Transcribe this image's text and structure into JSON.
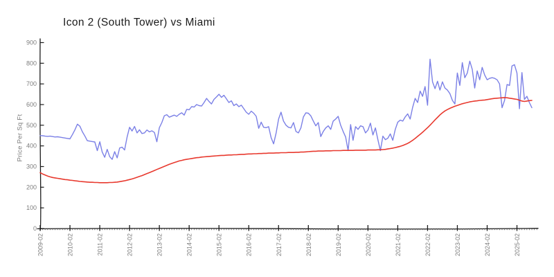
{
  "title": "Icon 2 (South Tower) vs Miami",
  "y_axis_label": "Price Per Sq Ft",
  "colors": {
    "icon2_line": "#7b80e6",
    "miami_line": "#e8392e",
    "axis": "#1a1a1a",
    "tick_label": "#7e7e7e",
    "title_text": "#1b1b1b"
  },
  "chart_data": {
    "type": "line",
    "title": "Icon 2 (South Tower) vs Miami",
    "xlabel": "",
    "ylabel": "Price Per Sq Ft",
    "ylim": [
      0,
      900
    ],
    "y_ticks": [
      0,
      100,
      200,
      300,
      400,
      500,
      600,
      700,
      800,
      900
    ],
    "x_start": "2009-02",
    "x_end": "2025-08",
    "x_interval": "monthly",
    "x_tick_labels": [
      "2009-02",
      "2010-02",
      "2011-02",
      "2012-02",
      "2013-02",
      "2014-02",
      "2015-02",
      "2016-02",
      "2017-02",
      "2018-02",
      "2019-02",
      "2020-02",
      "2021-02",
      "2022-02",
      "2023-02",
      "2024-02",
      "2025-02"
    ],
    "grid": false,
    "legend": "none",
    "style": "xkcd-sketch",
    "series": [
      {
        "name": "Icon 2 (South Tower)",
        "color": "#7b80e6",
        "values": [
          450,
          449,
          447,
          446,
          447,
          445,
          443,
          444,
          442,
          440,
          438,
          436,
          434,
          455,
          478,
          505,
          495,
          468,
          448,
          425,
          423,
          421,
          419,
          377,
          420,
          370,
          345,
          383,
          348,
          335,
          372,
          342,
          390,
          394,
          380,
          442,
          490,
          472,
          494,
          463,
          478,
          460,
          463,
          477,
          468,
          473,
          465,
          420,
          488,
          513,
          546,
          551,
          539,
          544,
          549,
          543,
          553,
          560,
          549,
          577,
          575,
          590,
          588,
          600,
          595,
          593,
          610,
          630,
          615,
          603,
          625,
          637,
          650,
          635,
          645,
          628,
          610,
          618,
          595,
          603,
          590,
          597,
          580,
          563,
          553,
          568,
          558,
          543,
          485,
          515,
          490,
          488,
          493,
          440,
          410,
          462,
          530,
          563,
          520,
          500,
          490,
          487,
          513,
          470,
          463,
          487,
          540,
          560,
          558,
          545,
          520,
          497,
          513,
          445,
          470,
          487,
          497,
          480,
          520,
          530,
          543,
          500,
          470,
          443,
          377,
          503,
          427,
          493,
          480,
          497,
          493,
          463,
          477,
          510,
          453,
          487,
          430,
          377,
          447,
          430,
          437,
          458,
          427,
          480,
          515,
          525,
          520,
          540,
          555,
          530,
          587,
          630,
          610,
          665,
          640,
          687,
          597,
          820,
          710,
          677,
          713,
          670,
          710,
          680,
          670,
          653,
          620,
          603,
          753,
          693,
          803,
          730,
          753,
          810,
          770,
          680,
          763,
          720,
          780,
          743,
          720,
          727,
          730,
          727,
          720,
          700,
          585,
          620,
          697,
          693,
          787,
          793,
          753,
          580,
          755,
          625,
          640,
          610,
          585
        ]
      },
      {
        "name": "Miami",
        "color": "#e8392e",
        "values": [
          270,
          264,
          259,
          254,
          250,
          247,
          245,
          243,
          241,
          239,
          237,
          236,
          234,
          233,
          231,
          230,
          228,
          227,
          226,
          225,
          224,
          224,
          223,
          223,
          222,
          222,
          222,
          222,
          223,
          223,
          224,
          225,
          227,
          229,
          231,
          234,
          237,
          240,
          244,
          248,
          252,
          256,
          261,
          266,
          271,
          276,
          281,
          286,
          291,
          296,
          301,
          306,
          311,
          315,
          319,
          323,
          327,
          330,
          333,
          335,
          337,
          339,
          341,
          343,
          344,
          346,
          347,
          348,
          349,
          350,
          351,
          352,
          353,
          354,
          354,
          355,
          356,
          356,
          357,
          357,
          358,
          359,
          359,
          360,
          361,
          361,
          362,
          362,
          363,
          363,
          364,
          364,
          365,
          365,
          365,
          366,
          366,
          367,
          367,
          367,
          368,
          368,
          368,
          369,
          369,
          370,
          370,
          371,
          372,
          373,
          374,
          374,
          375,
          375,
          375,
          376,
          376,
          376,
          377,
          377,
          377,
          377,
          378,
          378,
          378,
          378,
          378,
          379,
          379,
          379,
          379,
          379,
          380,
          380,
          380,
          380,
          381,
          381,
          382,
          383,
          385,
          387,
          389,
          392,
          395,
          398,
          402,
          407,
          412,
          419,
          427,
          436,
          446,
          456,
          466,
          477,
          488,
          500,
          513,
          526,
          538,
          550,
          560,
          569,
          576,
          582,
          587,
          592,
          596,
          600,
          604,
          607,
          610,
          613,
          615,
          617,
          618,
          620,
          621,
          622,
          624,
          626,
          628,
          630,
          631,
          632,
          633,
          634,
          633,
          631,
          629,
          627,
          625,
          621,
          617,
          615,
          617,
          619,
          620
        ]
      }
    ]
  }
}
